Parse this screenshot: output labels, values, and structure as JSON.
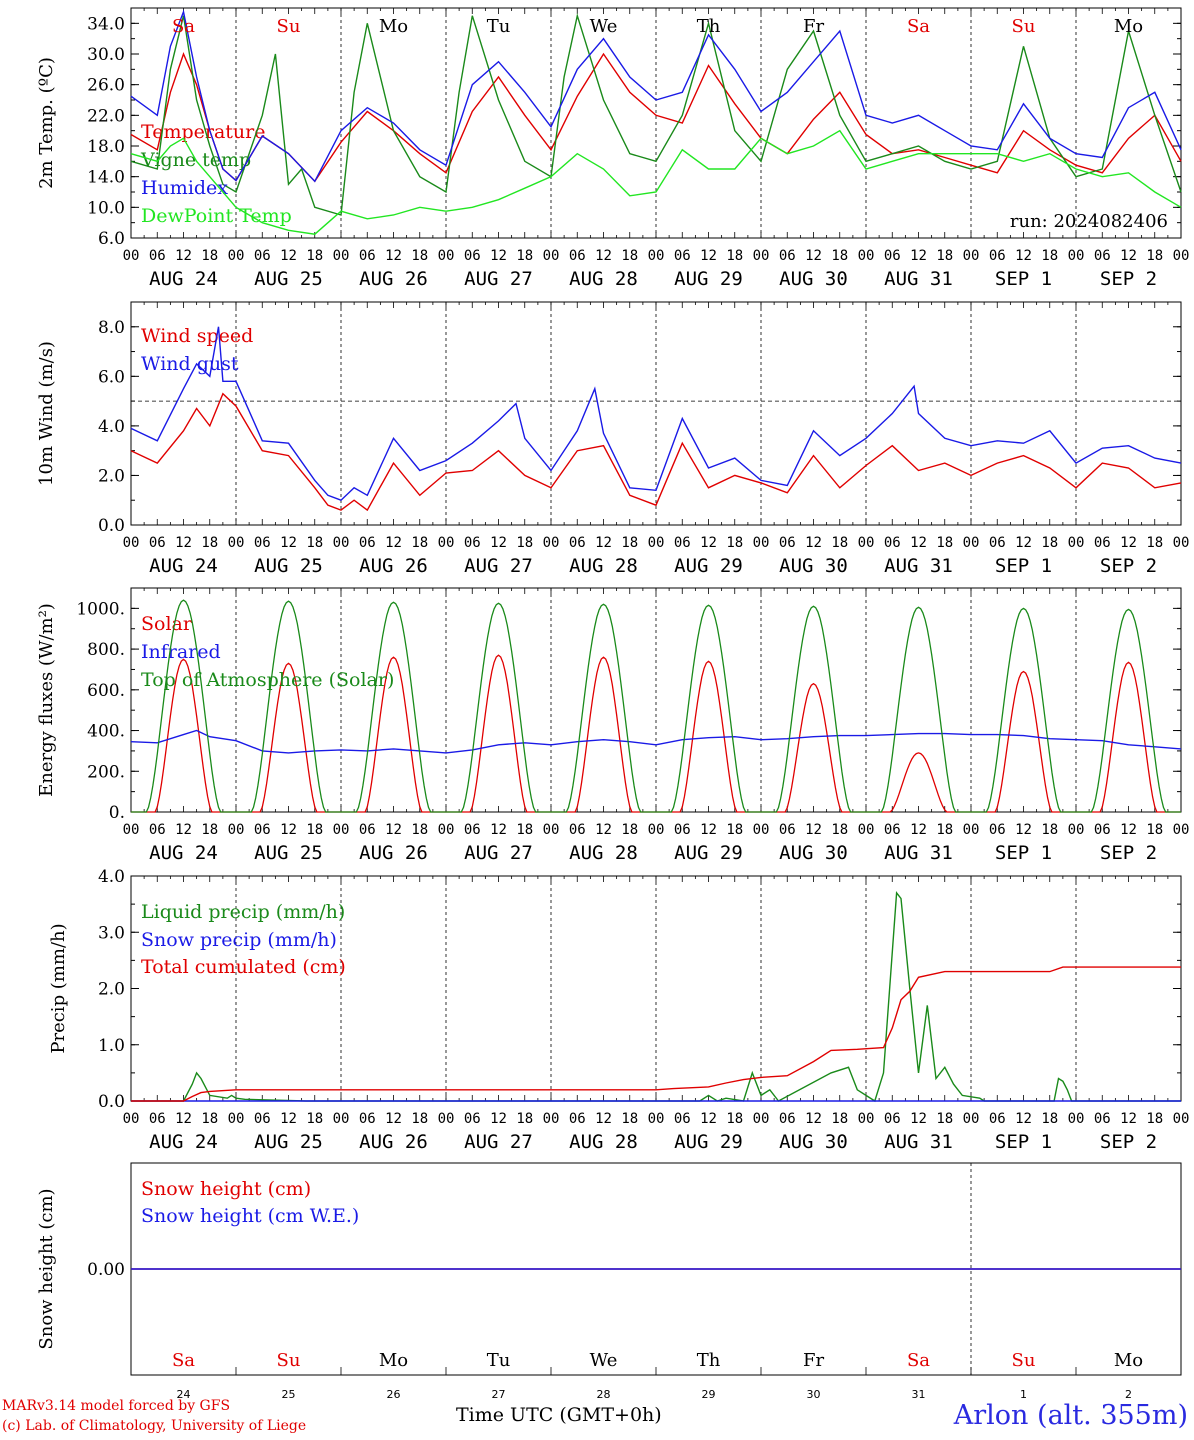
{
  "run_label": "run: 2024082406",
  "credits": {
    "model": "MARv3.14 model forced by GFS",
    "lab": "(c) Lab. of Climatology, University of Liege"
  },
  "time_axis_label": "Time UTC (GMT+0h)",
  "station": "Arlon (alt. 355m)",
  "colors": {
    "red": "#e00000",
    "blue": "#1a1ae6",
    "green": "#1a8a1a",
    "lightgreen": "#22e622"
  },
  "hour_ticks": [
    "00",
    "06",
    "12",
    "18"
  ],
  "date_labels": [
    "AUG 24",
    "AUG 25",
    "AUG 26",
    "AUG 27",
    "AUG 28",
    "AUG 29",
    "AUG 30",
    "AUG 31",
    "SEP  1",
    "SEP  2"
  ],
  "weekdays": [
    "Sa",
    "Su",
    "Mo",
    "Tu",
    "We",
    "Th",
    "Fr",
    "Sa",
    "Su",
    "Mo"
  ],
  "weekday_colors": [
    "red",
    "red",
    "black",
    "black",
    "black",
    "black",
    "black",
    "red",
    "red",
    "black"
  ],
  "day_numbers": [
    "24",
    "25",
    "26",
    "27",
    "28",
    "29",
    "30",
    "31",
    "1",
    "2"
  ],
  "chart_data": [
    {
      "type": "line",
      "ylabel": "2m Temp. (ºC)",
      "ylim": [
        6,
        36
      ],
      "yticks": [
        "6.0",
        "10.0",
        "14.0",
        "18.0",
        "22.0",
        "26.0",
        "30.0",
        "34.0"
      ],
      "x_unit": "hours since AUG 24 00 UTC",
      "series": [
        {
          "name": "Temperature",
          "color": "red",
          "x": [
            0,
            6,
            9,
            12,
            15,
            18,
            21,
            24,
            30,
            36,
            42,
            48,
            54,
            60,
            66,
            72,
            78,
            84,
            90,
            96,
            102,
            108,
            114,
            120,
            126,
            132,
            138,
            144,
            150,
            156,
            162,
            168,
            174,
            180,
            186,
            192,
            198,
            204,
            210,
            216,
            222,
            228,
            234,
            240
          ],
          "y": [
            19.5,
            17.5,
            25,
            30,
            26,
            20,
            15,
            13.5,
            19.3,
            17,
            13.4,
            18.5,
            22.5,
            20,
            17,
            14.5,
            22.5,
            27,
            22,
            17.5,
            24.5,
            30,
            25,
            22,
            21,
            28.5,
            23.5,
            19,
            17,
            21.5,
            25,
            19.5,
            17,
            17.5,
            16.5,
            15.5,
            14.5,
            20,
            17.5,
            15.5,
            14.5,
            19,
            22,
            16
          ]
        },
        {
          "name": "Vigne temp",
          "color": "green",
          "x": [
            0,
            6,
            9,
            12,
            15,
            18,
            21,
            24,
            30,
            33,
            36,
            39,
            42,
            48,
            51,
            54,
            60,
            66,
            72,
            75,
            78,
            84,
            90,
            96,
            99,
            102,
            108,
            114,
            120,
            126,
            132,
            138,
            144,
            150,
            156,
            162,
            168,
            174,
            180,
            186,
            192,
            198,
            204,
            210,
            216,
            222,
            228,
            234,
            240
          ],
          "y": [
            16,
            15,
            28,
            35,
            24,
            18,
            13,
            12,
            22,
            30,
            13,
            15,
            10,
            9,
            25,
            34,
            20,
            14,
            12,
            25,
            35,
            24,
            16,
            14,
            27,
            35,
            24,
            17,
            16,
            22,
            34,
            20,
            16,
            28,
            33,
            22,
            16,
            17,
            18,
            16,
            15,
            16,
            31,
            19,
            14,
            15,
            33,
            22,
            12
          ]
        },
        {
          "name": "Humidex",
          "color": "blue",
          "x": [
            0,
            6,
            9,
            12,
            15,
            18,
            21,
            24,
            30,
            36,
            42,
            48,
            54,
            60,
            66,
            72,
            78,
            84,
            90,
            96,
            102,
            108,
            114,
            120,
            126,
            132,
            138,
            144,
            150,
            156,
            162,
            168,
            174,
            180,
            186,
            192,
            198,
            204,
            210,
            216,
            222,
            228,
            234,
            240
          ],
          "y": [
            24.5,
            22,
            31,
            35.5,
            27,
            20,
            15,
            13.5,
            19.3,
            17,
            13.4,
            20,
            23,
            21,
            17.5,
            15.5,
            26,
            29,
            25,
            20.5,
            28,
            32,
            27,
            24,
            25,
            32.5,
            28,
            22.5,
            25,
            29,
            33,
            22,
            21,
            22,
            20,
            18,
            17.5,
            23.5,
            19,
            17,
            16.5,
            23,
            25,
            17.5
          ]
        },
        {
          "name": "DewPoint Temp",
          "color": "lightgreen",
          "x": [
            0,
            6,
            9,
            12,
            15,
            18,
            24,
            30,
            36,
            42,
            48,
            54,
            60,
            66,
            72,
            78,
            84,
            90,
            96,
            102,
            108,
            114,
            120,
            126,
            132,
            138,
            144,
            150,
            156,
            162,
            168,
            174,
            180,
            186,
            192,
            198,
            204,
            210,
            216,
            222,
            228,
            234,
            240
          ],
          "y": [
            17,
            16,
            18,
            19,
            16,
            14,
            10,
            8,
            7,
            6.5,
            9.5,
            8.5,
            9,
            10,
            9.5,
            10,
            11,
            12.5,
            14,
            17,
            15,
            11.5,
            12,
            17.5,
            15,
            15,
            19,
            17,
            18,
            20,
            15,
            16,
            17,
            17,
            17,
            17,
            16,
            17,
            15,
            14,
            14.5,
            12,
            10
          ]
        }
      ]
    },
    {
      "type": "line",
      "ylabel": "10m Wind (m/s)",
      "ylim": [
        0,
        9
      ],
      "yticks": [
        "0.0",
        "2.0",
        "4.0",
        "6.0",
        "8.0"
      ],
      "reference_line": 5,
      "series": [
        {
          "name": "Wind speed",
          "color": "red",
          "x": [
            0,
            6,
            12,
            15,
            18,
            21,
            24,
            30,
            36,
            42,
            45,
            48,
            51,
            54,
            60,
            66,
            72,
            78,
            84,
            90,
            96,
            102,
            108,
            114,
            120,
            126,
            132,
            138,
            144,
            150,
            156,
            162,
            168,
            174,
            180,
            186,
            192,
            198,
            204,
            210,
            216,
            222,
            228,
            234,
            240
          ],
          "y": [
            3,
            2.5,
            3.8,
            4.7,
            4,
            5.3,
            4.8,
            3,
            2.8,
            1.5,
            0.8,
            0.6,
            1,
            0.6,
            2.5,
            1.2,
            2.1,
            2.2,
            3,
            2,
            1.5,
            3,
            3.2,
            1.2,
            0.8,
            3.3,
            1.5,
            2,
            1.7,
            1.3,
            2.8,
            1.5,
            2.4,
            3.2,
            2.2,
            2.5,
            2,
            2.5,
            2.8,
            2.3,
            1.5,
            2.5,
            2.3,
            1.5,
            1.7
          ]
        },
        {
          "name": "Wind gust",
          "color": "blue",
          "x": [
            0,
            6,
            12,
            15,
            18,
            20,
            21,
            24,
            30,
            36,
            42,
            45,
            48,
            51,
            54,
            60,
            66,
            72,
            78,
            84,
            88,
            90,
            96,
            102,
            106,
            108,
            114,
            120,
            126,
            132,
            138,
            144,
            150,
            156,
            162,
            168,
            174,
            179,
            180,
            186,
            192,
            198,
            204,
            210,
            216,
            222,
            228,
            234,
            240
          ],
          "y": [
            3.9,
            3.4,
            5.5,
            6.5,
            6,
            8,
            5.8,
            5.8,
            3.4,
            3.3,
            1.8,
            1.2,
            1,
            1.5,
            1.2,
            3.5,
            2.2,
            2.6,
            3.3,
            4.2,
            4.9,
            3.5,
            2.2,
            3.8,
            5.5,
            3.7,
            1.5,
            1.4,
            4.3,
            2.3,
            2.7,
            1.8,
            1.6,
            3.8,
            2.8,
            3.5,
            4.5,
            5.6,
            4.5,
            3.5,
            3.2,
            3.4,
            3.3,
            3.8,
            2.5,
            3.1,
            3.2,
            2.7,
            2.5
          ]
        }
      ]
    },
    {
      "type": "line",
      "ylabel": "Energy fluxes (W/m²)",
      "ylim": [
        0,
        1100
      ],
      "yticks": [
        "0.",
        "200.",
        "400.",
        "600.",
        "800.",
        "1000."
      ],
      "series": [
        {
          "name": "Solar",
          "color": "red",
          "daily_peaks": [
            750,
            730,
            760,
            770,
            760,
            740,
            630,
            290,
            690,
            735
          ]
        },
        {
          "name": "Infrared",
          "color": "blue",
          "x": [
            0,
            6,
            12,
            15,
            18,
            24,
            30,
            36,
            42,
            48,
            54,
            60,
            66,
            72,
            78,
            84,
            90,
            96,
            102,
            108,
            114,
            120,
            126,
            132,
            138,
            144,
            150,
            156,
            162,
            168,
            174,
            180,
            186,
            192,
            198,
            204,
            210,
            216,
            222,
            228,
            234,
            240
          ],
          "y": [
            345,
            340,
            380,
            400,
            370,
            350,
            300,
            290,
            300,
            305,
            300,
            310,
            300,
            290,
            305,
            330,
            340,
            330,
            345,
            355,
            345,
            330,
            355,
            365,
            370,
            355,
            360,
            370,
            375,
            375,
            380,
            385,
            385,
            380,
            380,
            375,
            360,
            355,
            350,
            330,
            320,
            310
          ]
        },
        {
          "name": "Top of Atmosphere (Solar)",
          "color": "green",
          "daily_peaks": [
            1040,
            1035,
            1030,
            1025,
            1020,
            1015,
            1010,
            1005,
            1000,
            995
          ]
        }
      ]
    },
    {
      "type": "line",
      "ylabel": "Precip (mm/h)",
      "ylim": [
        0,
        4
      ],
      "yticks": [
        "0.0",
        "1.0",
        "2.0",
        "3.0",
        "4.0"
      ],
      "series": [
        {
          "name": "Liquid precip (mm/h)",
          "color": "green",
          "x": [
            0,
            12,
            14,
            15,
            16,
            18,
            22,
            23,
            24,
            26,
            40,
            130,
            132,
            134,
            136,
            140,
            142,
            144,
            146,
            148,
            160,
            164,
            166,
            168,
            170,
            172,
            175,
            176,
            178,
            180,
            182,
            184,
            186,
            188,
            190,
            194,
            195,
            200,
            211,
            212,
            213,
            214,
            215,
            240
          ],
          "y": [
            0,
            0,
            0.3,
            0.5,
            0.4,
            0.1,
            0.05,
            0.1,
            0.05,
            0.03,
            0,
            0,
            0.1,
            0,
            0.05,
            0,
            0.5,
            0.1,
            0.2,
            0,
            0.5,
            0.6,
            0.2,
            0.1,
            0,
            0.5,
            3.7,
            3.6,
            2,
            0.5,
            1.7,
            0.4,
            0.6,
            0.3,
            0.1,
            0.05,
            0,
            0,
            0,
            0.4,
            0.35,
            0.2,
            0,
            0
          ]
        },
        {
          "name": "Snow precip (mm/h)",
          "color": "blue",
          "x": [
            0,
            240
          ],
          "y": [
            0,
            0
          ]
        },
        {
          "name": "Total cumulated (cm)",
          "color": "red",
          "x": [
            0,
            12,
            14,
            16,
            18,
            24,
            48,
            72,
            96,
            120,
            124,
            132,
            136,
            140,
            144,
            150,
            156,
            160,
            166,
            172,
            174,
            176,
            178,
            180,
            186,
            210,
            213,
            240
          ],
          "y": [
            0,
            0,
            0.08,
            0.15,
            0.17,
            0.2,
            0.2,
            0.2,
            0.2,
            0.2,
            0.22,
            0.25,
            0.32,
            0.38,
            0.42,
            0.45,
            0.7,
            0.9,
            0.92,
            0.95,
            1.3,
            1.8,
            1.95,
            2.2,
            2.3,
            2.3,
            2.38,
            2.38
          ]
        }
      ]
    },
    {
      "type": "line",
      "ylabel": "Snow height (cm)",
      "ylim": [
        -1,
        1
      ],
      "yticks": [
        "0.00"
      ],
      "series": [
        {
          "name": "Snow height (cm)",
          "color": "red",
          "x": [
            0,
            240
          ],
          "y": [
            0,
            0
          ]
        },
        {
          "name": "Snow height (cm W.E.)",
          "color": "blue",
          "x": [
            0,
            240
          ],
          "y": [
            0,
            0
          ]
        }
      ]
    }
  ]
}
